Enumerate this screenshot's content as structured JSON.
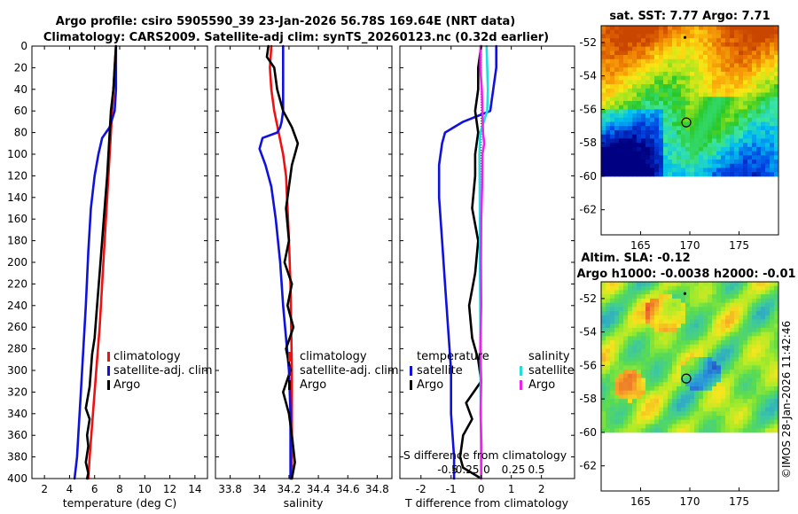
{
  "title": {
    "line1": "Argo profile: csiro 5905590_39 23-Jan-2026 56.78S 169.64E (NRT data)",
    "line2": "Climatology: CARS2009. Satellite-adj clim: synTS_20260123.nc (0.32d earlier)"
  },
  "credit": "©IMOS 28-Jan-2026 11:42:46",
  "colors": {
    "red": "#ee1111",
    "blue": "#1111dd",
    "black": "#000000",
    "cyan": "#22dddd",
    "magenta": "#ee22ee"
  },
  "chart_data": [
    {
      "type": "line",
      "id": "temperature",
      "xlabel": "temperature (deg C)",
      "ylabel": "",
      "xlim": [
        1,
        15
      ],
      "ylim": [
        400,
        0
      ],
      "xticks": [
        "2",
        "4",
        "6",
        "8",
        "10",
        "12",
        "14"
      ],
      "xtick_values": [
        2,
        4,
        6,
        8,
        10,
        12,
        14
      ],
      "yticks": [
        "0",
        "20",
        "40",
        "60",
        "80",
        "100",
        "120",
        "140",
        "160",
        "180",
        "200",
        "220",
        "240",
        "260",
        "280",
        "300",
        "320",
        "340",
        "360",
        "380",
        "400"
      ],
      "ytick_values": [
        0,
        20,
        40,
        60,
        80,
        100,
        120,
        140,
        160,
        180,
        200,
        220,
        240,
        260,
        280,
        300,
        320,
        340,
        360,
        380,
        400
      ],
      "legend": [
        "climatology",
        "satellite-adj. clim",
        "Argo"
      ],
      "series": [
        {
          "name": "climatology",
          "color": "#ee1111",
          "x": [
            7.7,
            7.6,
            7.5,
            7.4,
            7.3,
            7.2,
            7.0,
            6.8,
            6.6,
            6.4,
            6.2,
            6.0,
            5.8,
            5.6,
            5.5
          ],
          "y": [
            0,
            20,
            40,
            60,
            80,
            100,
            140,
            180,
            220,
            260,
            290,
            320,
            350,
            380,
            400
          ]
        },
        {
          "name": "satellite-adj. clim",
          "color": "#1111dd",
          "x": [
            7.7,
            7.7,
            7.7,
            7.6,
            7.2,
            6.6,
            6.3,
            6.0,
            5.7,
            5.5,
            5.3,
            5.1,
            4.9,
            4.7,
            4.6,
            4.4
          ],
          "y": [
            0,
            20,
            40,
            60,
            75,
            85,
            100,
            120,
            150,
            190,
            240,
            280,
            320,
            360,
            380,
            400
          ]
        },
        {
          "name": "Argo",
          "color": "#000000",
          "x": [
            7.7,
            7.6,
            7.5,
            7.3,
            7.2,
            7.1,
            7.0,
            6.8,
            6.6,
            6.4,
            6.2,
            6.0,
            5.8,
            5.7,
            5.6,
            5.3,
            5.6,
            5.4,
            5.5,
            5.3,
            5.5,
            5.4
          ],
          "y": [
            0,
            20,
            40,
            60,
            80,
            100,
            120,
            150,
            180,
            210,
            240,
            270,
            285,
            300,
            315,
            335,
            345,
            360,
            370,
            385,
            395,
            400
          ]
        }
      ]
    },
    {
      "type": "line",
      "id": "salinity",
      "xlabel": "salinity",
      "xlim": [
        33.7,
        34.9
      ],
      "ylim": [
        400,
        0
      ],
      "xticks": [
        "33.8",
        "34",
        "34.2",
        "34.4",
        "34.6",
        "34.8"
      ],
      "xtick_values": [
        33.8,
        34.0,
        34.2,
        34.4,
        34.6,
        34.8
      ],
      "legend": [
        "climatology",
        "satellite-adj. clim",
        "Argo"
      ],
      "series": [
        {
          "name": "climatology",
          "color": "#ee1111",
          "x": [
            34.08,
            34.07,
            34.08,
            34.1,
            34.13,
            34.16,
            34.18,
            34.19,
            34.2,
            34.21,
            34.215,
            34.22,
            34.22,
            34.22
          ],
          "y": [
            0,
            20,
            40,
            60,
            80,
            100,
            120,
            150,
            180,
            220,
            260,
            300,
            350,
            400
          ]
        },
        {
          "name": "satellite-adj. clim",
          "color": "#1111dd",
          "x": [
            34.16,
            34.16,
            34.16,
            34.16,
            34.15,
            34.14,
            34.12,
            34.02,
            34.0,
            34.04,
            34.08,
            34.11,
            34.14,
            34.16,
            34.18,
            34.2,
            34.21,
            34.21,
            34.21
          ],
          "y": [
            0,
            20,
            40,
            60,
            70,
            75,
            80,
            85,
            95,
            110,
            130,
            160,
            200,
            240,
            270,
            300,
            340,
            380,
            400
          ]
        },
        {
          "name": "Argo",
          "color": "#000000",
          "x": [
            34.06,
            34.05,
            34.1,
            34.12,
            34.16,
            34.22,
            34.26,
            34.24,
            34.22,
            34.2,
            34.18,
            34.2,
            34.17,
            34.22,
            34.19,
            34.23,
            34.18,
            34.21,
            34.16,
            34.2,
            34.22,
            34.24,
            34.22
          ],
          "y": [
            0,
            10,
            20,
            40,
            60,
            75,
            90,
            100,
            110,
            130,
            150,
            180,
            200,
            220,
            240,
            260,
            280,
            300,
            320,
            340,
            360,
            385,
            400
          ]
        }
      ]
    },
    {
      "type": "line",
      "id": "difference",
      "xlabel": "T difference from climatology",
      "x2label": "S difference from climatology",
      "xlim": [
        -2.7,
        3.1
      ],
      "ylim": [
        400,
        0
      ],
      "xticks": [
        "-2",
        "-1",
        "0",
        "1",
        "2"
      ],
      "xtick_values": [
        -2,
        -1,
        0,
        1,
        2
      ],
      "x2ticks": [
        "-0.5",
        "-0.25",
        "0",
        "0.25",
        "0.5"
      ],
      "x2tick_values": [
        -0.5,
        -0.25,
        0,
        0.25,
        0.5
      ],
      "legend_groups": {
        "temperature": "temperature",
        "salinity": "salinity"
      },
      "legend": [
        "satellite",
        "Argo",
        "satellite",
        "Argo"
      ],
      "series": [
        {
          "name": "temperature satellite",
          "color": "#1111dd",
          "x": [
            0.5,
            0.5,
            0.4,
            0.3,
            -0.6,
            -1.2,
            -1.3,
            -1.4,
            -1.4,
            -1.3,
            -1.2,
            -1.1,
            -1.0,
            -1.0,
            -0.9,
            -0.9
          ],
          "y": [
            0,
            20,
            40,
            60,
            70,
            80,
            90,
            110,
            140,
            180,
            220,
            260,
            300,
            340,
            380,
            400
          ]
        },
        {
          "name": "temperature Argo",
          "color": "#000000",
          "x": [
            0.0,
            -0.1,
            -0.1,
            -0.2,
            -0.1,
            -0.2,
            -0.2,
            -0.3,
            -0.1,
            -0.2,
            -0.4,
            -0.3,
            -0.1,
            0.0,
            -0.5,
            -0.3,
            -0.6,
            -0.7,
            -0.6,
            0.0
          ],
          "y": [
            0,
            20,
            40,
            60,
            80,
            100,
            120,
            150,
            180,
            210,
            240,
            270,
            290,
            310,
            330,
            345,
            360,
            380,
            390,
            400
          ]
        },
        {
          "name": "salinity satellite",
          "color": "#22dddd",
          "x": [
            0.18,
            0.2,
            0.22,
            0.2,
            -0.03,
            -0.06,
            -0.05,
            -0.04,
            -0.04,
            -0.03,
            -0.02,
            -0.02,
            -0.01,
            -0.01,
            0.0
          ],
          "y": [
            0,
            20,
            40,
            60,
            80,
            100,
            130,
            170,
            210,
            250,
            290,
            320,
            350,
            380,
            400
          ]
        },
        {
          "name": "salinity Argo",
          "color": "#ee22ee",
          "x": [
            -0.02,
            -0.03,
            0.02,
            0.04,
            0.06,
            0.1,
            0.04,
            0.03,
            0.0,
            -0.01,
            0.0,
            -0.03,
            0.0,
            -0.02,
            0.01,
            0.0
          ],
          "y": [
            0,
            20,
            40,
            60,
            80,
            90,
            100,
            130,
            160,
            200,
            240,
            280,
            310,
            340,
            370,
            400
          ]
        }
      ]
    },
    {
      "type": "heatmap",
      "id": "sst-map",
      "title": "sat. SST: 7.77 Argo: 7.71",
      "xlim": [
        161,
        179
      ],
      "ylim": [
        -63.5,
        -51
      ],
      "xticks": [
        "165",
        "170",
        "175"
      ],
      "xtick_values": [
        165,
        170,
        175
      ],
      "yticks": [
        "-52",
        "-54",
        "-56",
        "-58",
        "-60",
        "-62"
      ],
      "ytick_values": [
        -52,
        -54,
        -56,
        -58,
        -60,
        -62
      ],
      "data_ylim": [
        -60,
        -51
      ],
      "argo_position": [
        169.64,
        -56.78
      ]
    },
    {
      "type": "heatmap",
      "id": "sla-map",
      "title": "Altim. SLA: -0.12",
      "subtitle": "Argo h1000: -0.0038 h2000: -0.01",
      "xlim": [
        161,
        179
      ],
      "ylim": [
        -63.5,
        -51
      ],
      "xticks": [
        "165",
        "170",
        "175"
      ],
      "xtick_values": [
        165,
        170,
        175
      ],
      "yticks": [
        "-52",
        "-54",
        "-56",
        "-58",
        "-60",
        "-62"
      ],
      "ytick_values": [
        -52,
        -54,
        -56,
        -58,
        -60,
        -62
      ],
      "data_ylim": [
        -60,
        -51
      ],
      "argo_position": [
        169.64,
        -56.78
      ]
    }
  ]
}
